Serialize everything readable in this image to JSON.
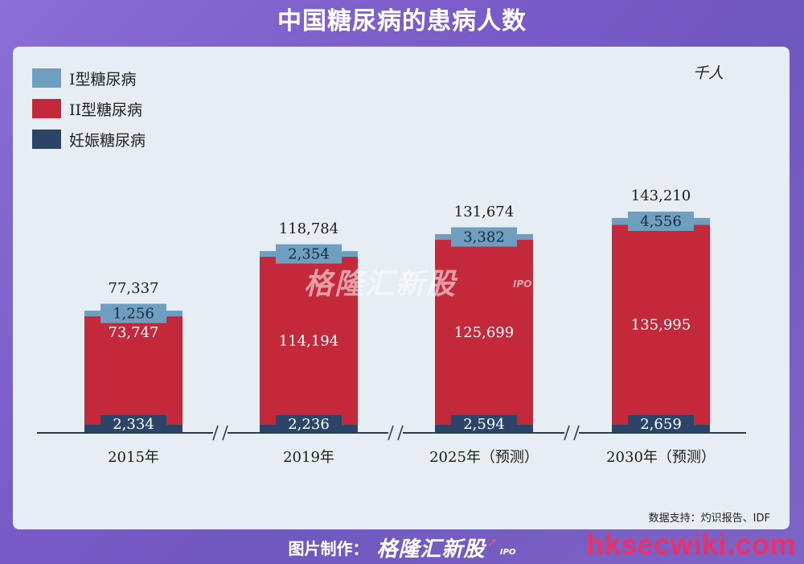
{
  "title": "中国糖尿病的患病人数",
  "legend": [
    {
      "label": "I型糖尿病",
      "color": "#6e9fc0"
    },
    {
      "label": "II型糖尿病",
      "color": "#c3283b"
    },
    {
      "label": "妊娠糖尿病",
      "color": "#2c4467"
    }
  ],
  "unit": "千人",
  "source": "数据支持：灼识报告、IDF",
  "footer": {
    "label": "图片制作：",
    "brand": "格隆汇新股",
    "ipo": "IPO"
  },
  "watermark": {
    "brand": "格隆汇新股",
    "ipo": "IPO"
  },
  "site": "hksecwiki.com",
  "chart_data": {
    "type": "bar",
    "stacked": true,
    "categories": [
      "2015年",
      "2019年",
      "2025年（预测）",
      "2030年（预测）"
    ],
    "series": [
      {
        "name": "妊娠糖尿病",
        "values": [
          2334,
          2236,
          2594,
          2659
        ],
        "labels": [
          "2,334",
          "2,236",
          "2,594",
          "2,659"
        ]
      },
      {
        "name": "II型糖尿病",
        "values": [
          73747,
          114194,
          125699,
          135995
        ],
        "labels": [
          "73,747",
          "114,194",
          "125,699",
          "135,995"
        ]
      },
      {
        "name": "I型糖尿病",
        "values": [
          1256,
          2354,
          3382,
          4556
        ],
        "labels": [
          "1,256",
          "2,354",
          "3,382",
          "4,556"
        ]
      }
    ],
    "totals": [
      77337,
      118784,
      131674,
      143210
    ],
    "total_labels": [
      "77,337",
      "118,784",
      "131,674",
      "143,210"
    ],
    "axis_break": true
  }
}
